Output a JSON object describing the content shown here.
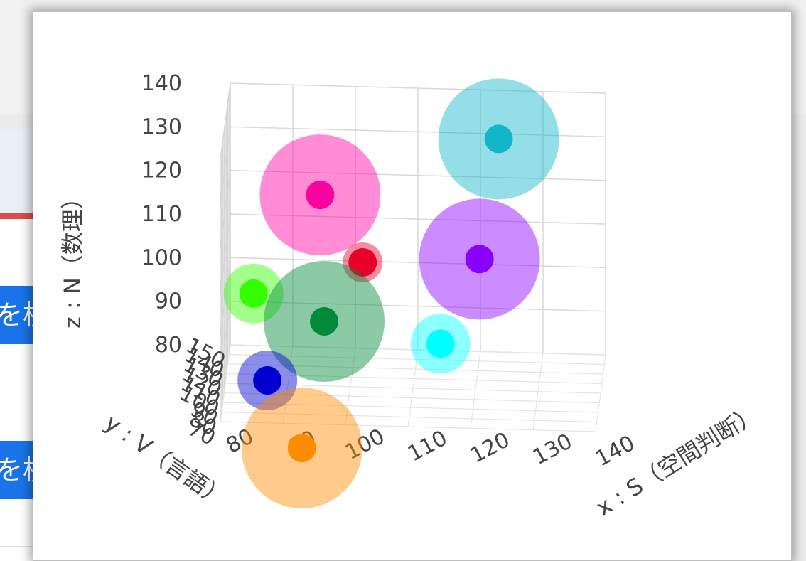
{
  "background": {
    "button_label": "を検"
  },
  "chart_data": {
    "type": "scatter3d",
    "title": "",
    "xlabel": "x : S（空間判断）",
    "ylabel": "y : V（言語）",
    "zlabel": "z : N（数理）",
    "x_ticks": [
      "80",
      "90",
      "100",
      "110",
      "120",
      "130",
      "140"
    ],
    "y_ticks": [
      "150",
      "140",
      "130",
      "120",
      "110",
      "100",
      "90",
      "80",
      "70"
    ],
    "z_ticks": [
      "80",
      "90",
      "100",
      "110",
      "120",
      "130",
      "140"
    ],
    "xlim": [
      80,
      140
    ],
    "ylim": [
      70,
      150
    ],
    "zlim": [
      80,
      140
    ],
    "grid": true,
    "points": [
      {
        "x": 124,
        "y": 95,
        "z": 141,
        "color": "#12b5c9",
        "size": 85
      },
      {
        "x": 95,
        "y": 118,
        "z": 122,
        "color": "#ff00a0",
        "size": 85
      },
      {
        "x": 121,
        "y": 92,
        "z": 114,
        "color": "#8a00ff",
        "size": 85
      },
      {
        "x": 102,
        "y": 108,
        "z": 109,
        "color": "#e8002a",
        "size": 28
      },
      {
        "x": 96,
        "y": 100,
        "z": 97,
        "color": "#008a3a",
        "size": 85
      },
      {
        "x": 115,
        "y": 80,
        "z": 97,
        "color": "#00ffff",
        "size": 42
      },
      {
        "x": 84,
        "y": 136,
        "z": 95,
        "color": "#33ff00",
        "size": 42
      },
      {
        "x": 87,
        "y": 96,
        "z": 84,
        "color": "#0000d0",
        "size": 42
      },
      {
        "x": 93,
        "y": 72,
        "z": 74,
        "color": "#ff8c00",
        "size": 85
      }
    ]
  }
}
